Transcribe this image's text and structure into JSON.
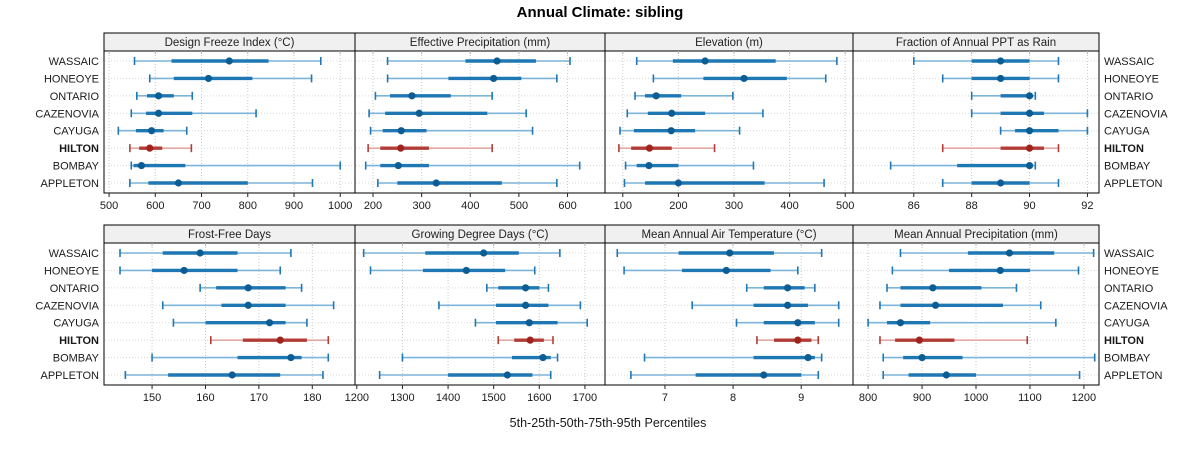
{
  "title": "Annual Climate: sibling",
  "xlabel": "5th-25th-50th-75th-95th Percentiles",
  "colors": {
    "header_bg": "#f0f0f0",
    "panel_border": "#000000",
    "grid_vertical": "#c9c9c9",
    "grid_row": "#d8d8d8",
    "axis_text": "#1a1a1a",
    "blue_line": "#7db4da",
    "blue_band": "#1f77b4",
    "blue_dot": "#0c5d94",
    "red_line": "#e3aaa5",
    "red_band": "#b23d36",
    "red_dot": "#a0241e"
  },
  "chart_data": {
    "type": "dotplot",
    "subtype": "percentile-intervals",
    "percentile_labels": [
      "5th",
      "25th",
      "50th",
      "75th",
      "95th"
    ],
    "sites": [
      "WASSAIC",
      "HONEOYE",
      "ONTARIO",
      "CAZENOVIA",
      "CAYUGA",
      "HILTON",
      "BOMBAY",
      "APPLETON"
    ],
    "highlight_site": "HILTON",
    "legend_position": "none",
    "grid": true,
    "panels": [
      {
        "label": "Design Freeze Index (°C)",
        "grid_row": 0,
        "grid_col": 0,
        "xlim": [
          489,
          1032
        ],
        "ticks": [
          500,
          600,
          700,
          800,
          900,
          1000
        ],
        "values": [
          [
            555,
            635,
            760,
            845,
            958
          ],
          [
            588,
            640,
            715,
            810,
            938
          ],
          [
            560,
            582,
            607,
            640,
            680
          ],
          [
            548,
            580,
            607,
            680,
            818
          ],
          [
            520,
            558,
            592,
            618,
            668
          ],
          [
            545,
            565,
            588,
            615,
            678
          ],
          [
            548,
            553,
            570,
            665,
            1000
          ],
          [
            545,
            585,
            650,
            800,
            940
          ]
        ]
      },
      {
        "label": "Effective Precipitation (mm)",
        "grid_row": 0,
        "grid_col": 1,
        "xlim": [
          163,
          677
        ],
        "ticks": [
          200,
          300,
          400,
          500,
          600
        ],
        "values": [
          [
            230,
            390,
            455,
            535,
            605
          ],
          [
            230,
            355,
            448,
            505,
            578
          ],
          [
            205,
            235,
            280,
            360,
            445
          ],
          [
            192,
            225,
            295,
            435,
            515
          ],
          [
            195,
            220,
            258,
            310,
            528
          ],
          [
            190,
            215,
            257,
            315,
            445
          ],
          [
            185,
            215,
            252,
            315,
            625
          ],
          [
            210,
            250,
            330,
            465,
            578
          ]
        ]
      },
      {
        "label": "Elevation (m)",
        "grid_row": 0,
        "grid_col": 2,
        "xlim": [
          68,
          514
        ],
        "ticks": [
          100,
          200,
          300,
          400,
          500
        ],
        "values": [
          [
            125,
            190,
            248,
            375,
            485
          ],
          [
            155,
            245,
            318,
            395,
            465
          ],
          [
            122,
            140,
            160,
            205,
            298
          ],
          [
            108,
            145,
            188,
            248,
            352
          ],
          [
            95,
            120,
            187,
            230,
            310
          ],
          [
            93,
            115,
            148,
            188,
            265
          ],
          [
            105,
            125,
            147,
            200,
            335
          ],
          [
            103,
            140,
            200,
            355,
            462
          ]
        ]
      },
      {
        "label": "Fraction of Annual PPT as Rain",
        "grid_row": 0,
        "grid_col": 3,
        "xlim": [
          83.9,
          92.4
        ],
        "ticks": [
          86,
          88,
          90,
          92
        ],
        "values": [
          [
            86,
            88,
            89,
            90,
            91
          ],
          [
            87,
            88,
            89,
            90,
            91
          ],
          [
            88,
            89,
            90,
            90,
            90.2
          ],
          [
            88,
            89,
            90,
            90.5,
            92
          ],
          [
            89,
            89.5,
            90,
            91,
            92
          ],
          [
            87,
            89,
            90,
            90.5,
            91
          ],
          [
            85.2,
            87.5,
            90,
            90,
            90.2
          ],
          [
            87,
            88,
            89,
            90,
            91
          ]
        ]
      },
      {
        "label": "Frost-Free Days",
        "grid_row": 1,
        "grid_col": 0,
        "xlim": [
          141,
          188
        ],
        "ticks": [
          150,
          160,
          170,
          180
        ],
        "values": [
          [
            144,
            152,
            159,
            166,
            176
          ],
          [
            144,
            150,
            156,
            166,
            174
          ],
          [
            159,
            162,
            168,
            175,
            178
          ],
          [
            152,
            163,
            168,
            175,
            184
          ],
          [
            154,
            160,
            172,
            175,
            179
          ],
          [
            161,
            167,
            174,
            179,
            183
          ],
          [
            150,
            166,
            176,
            178,
            183
          ],
          [
            145,
            153,
            165,
            174,
            182
          ]
        ]
      },
      {
        "label": "Growing Degree Days (°C)",
        "grid_row": 1,
        "grid_col": 1,
        "xlim": [
          1196,
          1744
        ],
        "ticks": [
          1200,
          1300,
          1400,
          1500,
          1600,
          1700
        ],
        "values": [
          [
            1215,
            1350,
            1478,
            1555,
            1645
          ],
          [
            1230,
            1345,
            1440,
            1525,
            1590
          ],
          [
            1485,
            1510,
            1570,
            1600,
            1620
          ],
          [
            1380,
            1505,
            1570,
            1620,
            1690
          ],
          [
            1460,
            1505,
            1578,
            1640,
            1705
          ],
          [
            1510,
            1545,
            1580,
            1610,
            1630
          ],
          [
            1300,
            1540,
            1608,
            1625,
            1640
          ],
          [
            1250,
            1400,
            1530,
            1585,
            1625
          ]
        ]
      },
      {
        "label": "Mean Annual Air Temperature (°C)",
        "grid_row": 1,
        "grid_col": 2,
        "xlim": [
          6.12,
          9.76
        ],
        "ticks": [
          7,
          8,
          9
        ],
        "values": [
          [
            6.3,
            7.2,
            7.95,
            8.6,
            9.3
          ],
          [
            6.4,
            7.25,
            7.9,
            8.55,
            8.95
          ],
          [
            8.2,
            8.45,
            8.8,
            9.05,
            9.2
          ],
          [
            7.4,
            8.3,
            8.8,
            9.1,
            9.55
          ],
          [
            8.05,
            8.45,
            8.95,
            9.2,
            9.55
          ],
          [
            8.35,
            8.6,
            8.95,
            9.15,
            9.25
          ],
          [
            6.7,
            8.3,
            9.1,
            9.2,
            9.3
          ],
          [
            6.5,
            7.45,
            8.45,
            9.0,
            9.25
          ]
        ]
      },
      {
        "label": "Mean Annual Precipitation (mm)",
        "grid_row": 1,
        "grid_col": 3,
        "xlim": [
          772,
          1228
        ],
        "ticks": [
          800,
          900,
          1000,
          1100,
          1200
        ],
        "values": [
          [
            860,
            985,
            1062,
            1145,
            1218
          ],
          [
            845,
            950,
            1045,
            1100,
            1190
          ],
          [
            835,
            860,
            920,
            1010,
            1075
          ],
          [
            822,
            860,
            925,
            1050,
            1120
          ],
          [
            800,
            835,
            860,
            915,
            1148
          ],
          [
            822,
            850,
            895,
            960,
            1095
          ],
          [
            828,
            865,
            900,
            975,
            1220
          ],
          [
            828,
            875,
            945,
            1000,
            1192
          ]
        ]
      }
    ]
  }
}
